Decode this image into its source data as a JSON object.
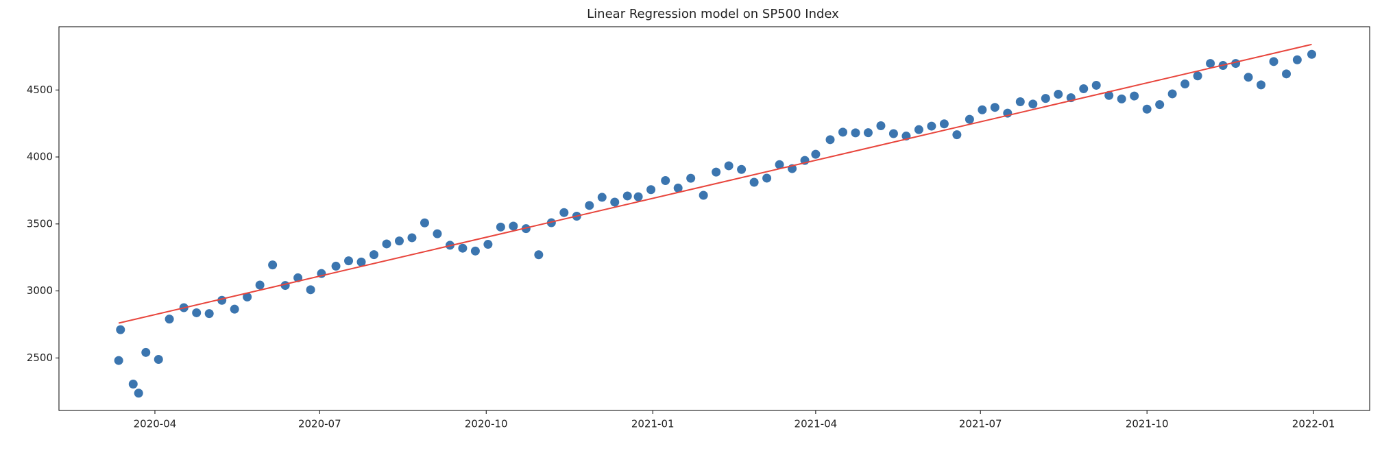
{
  "chart_data": {
    "type": "scatter",
    "title": "Linear Regression model on SP500 Index",
    "xlim": [
      "2020-02-08",
      "2022-02-01"
    ],
    "ylim": [
      2108,
      4972
    ],
    "xticks": [
      {
        "value": "2020-04-01",
        "label": "2020-04"
      },
      {
        "value": "2020-07-01",
        "label": "2020-07"
      },
      {
        "value": "2020-10-01",
        "label": "2020-10"
      },
      {
        "value": "2021-01-01",
        "label": "2021-01"
      },
      {
        "value": "2021-04-01",
        "label": "2021-04"
      },
      {
        "value": "2021-07-01",
        "label": "2021-07"
      },
      {
        "value": "2021-10-01",
        "label": "2021-10"
      },
      {
        "value": "2022-01-01",
        "label": "2022-01"
      }
    ],
    "yticks": [
      2500,
      3000,
      3500,
      4000,
      4500
    ],
    "series": [
      {
        "color": "#3b75af",
        "x": [
          "2020-03-12",
          "2020-03-13",
          "2020-03-20",
          "2020-03-23",
          "2020-03-27",
          "2020-04-03",
          "2020-04-09",
          "2020-04-17",
          "2020-04-24",
          "2020-05-01",
          "2020-05-08",
          "2020-05-15",
          "2020-05-22",
          "2020-05-29",
          "2020-06-05",
          "2020-06-12",
          "2020-06-19",
          "2020-06-26",
          "2020-07-02",
          "2020-07-10",
          "2020-07-17",
          "2020-07-24",
          "2020-07-31",
          "2020-08-07",
          "2020-08-14",
          "2020-08-21",
          "2020-08-28",
          "2020-09-04",
          "2020-09-11",
          "2020-09-18",
          "2020-09-25",
          "2020-10-02",
          "2020-10-09",
          "2020-10-16",
          "2020-10-23",
          "2020-10-30",
          "2020-11-06",
          "2020-11-13",
          "2020-11-20",
          "2020-11-27",
          "2020-12-04",
          "2020-12-11",
          "2020-12-18",
          "2020-12-24",
          "2020-12-31",
          "2021-01-08",
          "2021-01-15",
          "2021-01-22",
          "2021-01-29",
          "2021-02-05",
          "2021-02-12",
          "2021-02-19",
          "2021-02-26",
          "2021-03-05",
          "2021-03-12",
          "2021-03-19",
          "2021-03-26",
          "2021-04-01",
          "2021-04-09",
          "2021-04-16",
          "2021-04-23",
          "2021-04-30",
          "2021-05-07",
          "2021-05-14",
          "2021-05-21",
          "2021-05-28",
          "2021-06-04",
          "2021-06-11",
          "2021-06-18",
          "2021-06-25",
          "2021-07-02",
          "2021-07-09",
          "2021-07-16",
          "2021-07-23",
          "2021-07-30",
          "2021-08-06",
          "2021-08-13",
          "2021-08-20",
          "2021-08-27",
          "2021-09-03",
          "2021-09-10",
          "2021-09-17",
          "2021-09-24",
          "2021-10-01",
          "2021-10-08",
          "2021-10-15",
          "2021-10-22",
          "2021-10-29",
          "2021-11-05",
          "2021-11-12",
          "2021-11-19",
          "2021-11-26",
          "2021-12-03",
          "2021-12-10",
          "2021-12-17",
          "2021-12-23",
          "2021-12-31"
        ],
        "values": [
          2481,
          2711,
          2305,
          2237,
          2541,
          2489,
          2790,
          2875,
          2837,
          2831,
          2930,
          2864,
          2955,
          3044,
          3194,
          3041,
          3098,
          3009,
          3130,
          3185,
          3225,
          3216,
          3271,
          3351,
          3373,
          3397,
          3508,
          3427,
          3341,
          3319,
          3298,
          3348,
          3477,
          3484,
          3465,
          3270,
          3509,
          3585,
          3558,
          3638,
          3699,
          3663,
          3709,
          3703,
          3756,
          3824,
          3768,
          3841,
          3714,
          3887,
          3934,
          3907,
          3811,
          3842,
          3943,
          3913,
          3974,
          4020,
          4129,
          4185,
          4180,
          4181,
          4233,
          4174,
          4156,
          4204,
          4230,
          4247,
          4166,
          4281,
          4352,
          4370,
          4327,
          4412,
          4395,
          4437,
          4468,
          4442,
          4509,
          4535,
          4459,
          4433,
          4455,
          4357,
          4391,
          4471,
          4545,
          4605,
          4698,
          4683,
          4698,
          4595,
          4538,
          4712,
          4620,
          4725,
          4766
        ]
      }
    ],
    "regression": {
      "color": "#e8453c",
      "x": [
        "2020-03-12",
        "2021-12-31"
      ],
      "values": [
        2760,
        4840
      ]
    }
  }
}
